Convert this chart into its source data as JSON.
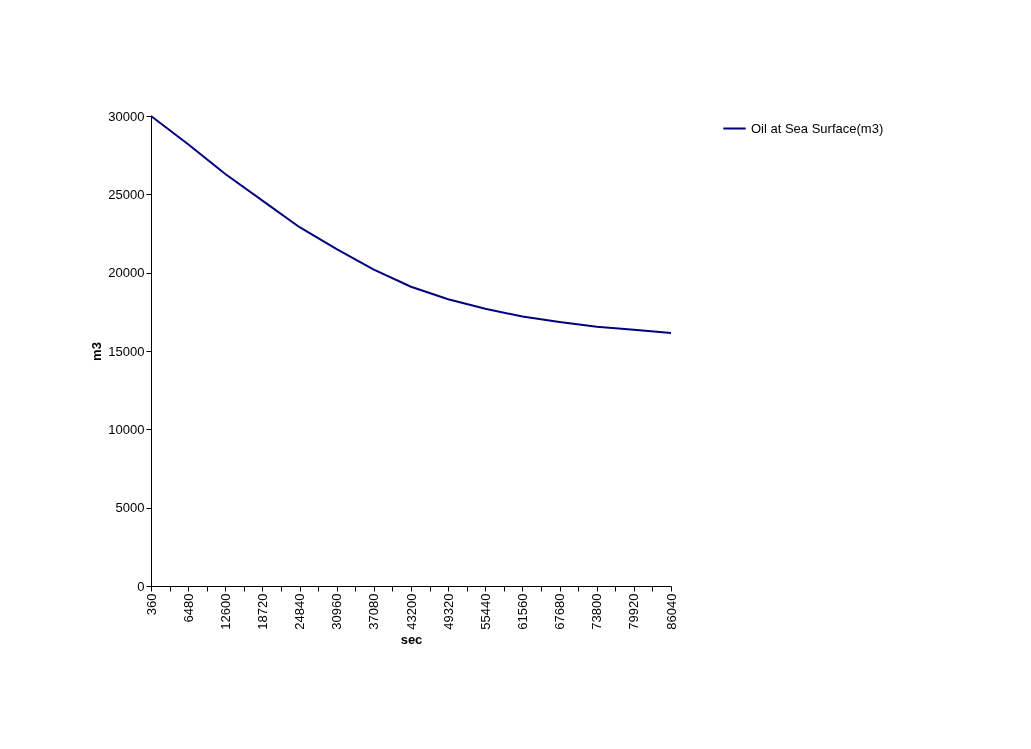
{
  "chart_data": {
    "type": "line",
    "xlabel": "sec",
    "ylabel": "m3",
    "x": [
      360,
      6480,
      12600,
      18720,
      24840,
      30960,
      37080,
      43200,
      49320,
      55440,
      61560,
      67680,
      73800,
      79920,
      86040
    ],
    "series": [
      {
        "name": "Oil at Sea Surface(m3)",
        "color": "#000080",
        "values": [
          30000,
          28200,
          26300,
          24600,
          22900,
          21500,
          20200,
          19100,
          18300,
          17700,
          17200,
          16850,
          16550,
          16350,
          16150
        ]
      }
    ],
    "xlim": [
      360,
      86040
    ],
    "xticks": [
      360,
      {
        "value": 3420,
        "label": null
      },
      6480,
      {
        "value": 9540,
        "label": null
      },
      12600,
      {
        "value": 15660,
        "label": null
      },
      18720,
      {
        "value": 21780,
        "label": null
      },
      24840,
      {
        "value": 27900,
        "label": null
      },
      30960,
      {
        "value": 34020,
        "label": null
      },
      37080,
      {
        "value": 40140,
        "label": null
      },
      43200,
      {
        "value": 46260,
        "label": null
      },
      49320,
      {
        "value": 52380,
        "label": null
      },
      55440,
      {
        "value": 58500,
        "label": null
      },
      61560,
      {
        "value": 64620,
        "label": null
      },
      67680,
      {
        "value": 70740,
        "label": null
      },
      73800,
      {
        "value": 76860,
        "label": null
      },
      79920,
      {
        "value": 82980,
        "label": null
      },
      86040
    ],
    "ylim": [
      0,
      30000
    ],
    "yticks": [
      0,
      5000,
      10000,
      15000,
      20000,
      25000,
      30000
    ],
    "grid": false,
    "legend": "right",
    "marker": "none",
    "line_style": "solid"
  }
}
